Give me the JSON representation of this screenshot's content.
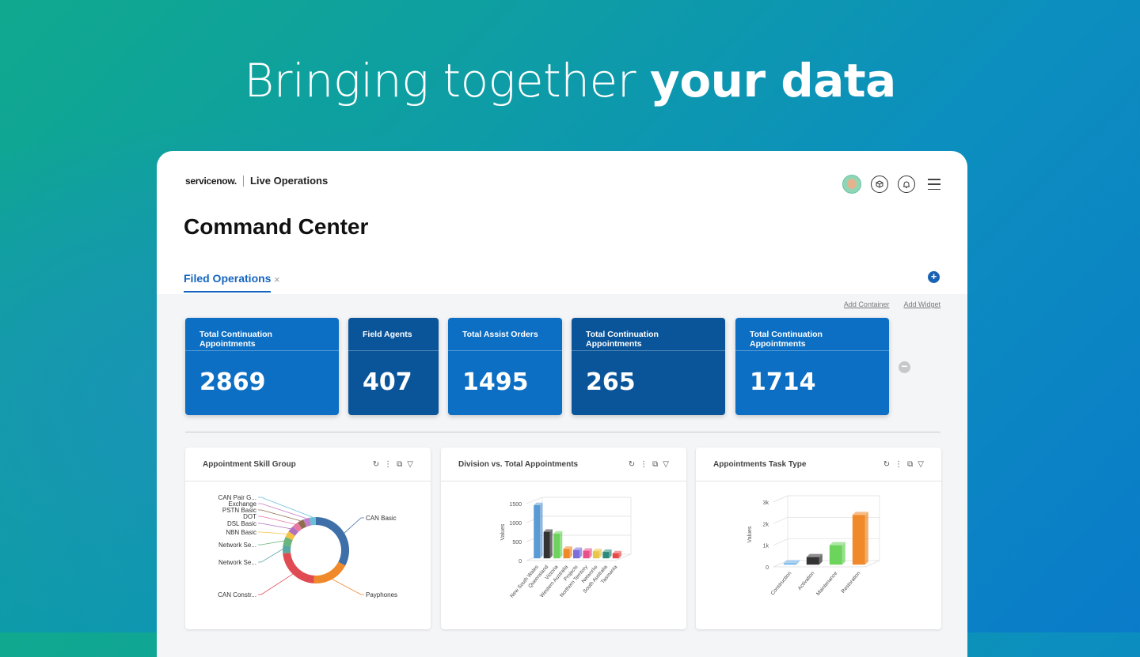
{
  "hero": {
    "title_regular": "Bringing together ",
    "title_bold": "your data"
  },
  "header": {
    "logo": "servicenow.",
    "app_name": "Live Operations",
    "page_title": "Command Center"
  },
  "tabs": [
    {
      "label": "Filed Operations",
      "close": "×"
    }
  ],
  "toolbar": {
    "add_container": "Add Container",
    "add_widget": "Add Widget",
    "plus": "+",
    "minus": "−"
  },
  "icons": {
    "avatar": "user-avatar",
    "box": "box-icon",
    "bell": "bell-icon",
    "menu": "hamburger-menu-icon"
  },
  "kpis": [
    {
      "label": "Total Continuation Appointments",
      "value": "2869",
      "color": "#0d6fc3"
    },
    {
      "label": "Field Agents",
      "value": "407",
      "color": "#0a5499"
    },
    {
      "label": "Total Assist Orders",
      "value": "1495",
      "color": "#0d6fc3"
    },
    {
      "label": "Total Continuation Appointments",
      "value": "265",
      "color": "#0a5499"
    },
    {
      "label": "Total Continuation Appointments",
      "value": "1714",
      "color": "#0d6fc3"
    }
  ],
  "panels": [
    {
      "title": "Appointment Skill Group"
    },
    {
      "title": "Division vs. Total Appointments"
    },
    {
      "title": "Appointments Task Type"
    }
  ],
  "chart_data": [
    {
      "type": "pie",
      "title": "Appointment Skill Group",
      "categories": [
        "CAN Basic",
        "Payphones",
        "CAN Constr...",
        "Network Se...",
        "Network Se...",
        "NBN Basic",
        "DSL Basic",
        "DOT",
        "PSTN Basic",
        "Exchange",
        "CAN Pair G..."
      ],
      "values": [
        32,
        18,
        22,
        4,
        4,
        3,
        3,
        3,
        3,
        3,
        3
      ],
      "colors": [
        "#3e6fa8",
        "#f0892a",
        "#e04b52",
        "#5aa9a0",
        "#6bb57c",
        "#f2c343",
        "#b06fc0",
        "#e77aa3",
        "#8e6c4e",
        "#c07fc8",
        "#6cbfd9"
      ]
    },
    {
      "type": "bar",
      "title": "Division vs. Total Appointments",
      "ylabel": "Values",
      "ylim": [
        0,
        1500
      ],
      "yticks": [
        "1500",
        "1000",
        "500",
        "0"
      ],
      "categories": [
        "New South Wales",
        "Queensland",
        "Victoria",
        "Western Australia",
        "Projects",
        "Northern Territory",
        "Networks",
        "South Australia",
        "Tasmania"
      ],
      "values": [
        1400,
        700,
        650,
        250,
        220,
        200,
        190,
        170,
        130
      ],
      "colors": [
        "#5b9bd5",
        "#333333",
        "#6cd35c",
        "#f0892a",
        "#7b6fe0",
        "#e8508a",
        "#e8c64a",
        "#2d8a7a",
        "#e94848"
      ]
    },
    {
      "type": "bar",
      "title": "Appointments Task Type",
      "ylabel": "Values",
      "ylim": [
        0,
        3000
      ],
      "yticks": [
        "3k",
        "2k",
        "1k",
        "0"
      ],
      "categories": [
        "Construction",
        "Activation",
        "Maintenance",
        "Restoration"
      ],
      "values": [
        60,
        350,
        900,
        2300
      ],
      "colors": [
        "#6aaee8",
        "#333333",
        "#6cd35c",
        "#f0892a"
      ]
    }
  ]
}
